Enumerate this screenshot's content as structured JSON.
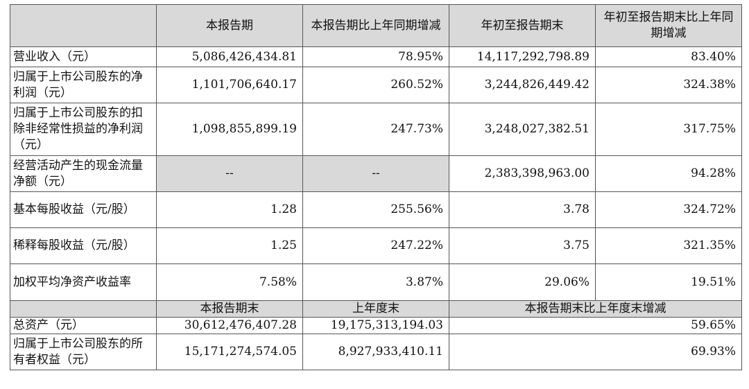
{
  "header": {
    "col1": "本报告期",
    "col2": "本报告期比上年同期增减",
    "col3": "年初至报告期末",
    "col4": "年初至报告期末比上年同期增减"
  },
  "rows": [
    {
      "label": "营业收入（元）",
      "v1": "5,086,426,434.81",
      "v2": "78.95%",
      "v3": "14,117,292,798.89",
      "v4": "83.40%"
    },
    {
      "label": "归属于上市公司股东的净利润（元）",
      "v1": "1,101,706,640.17",
      "v2": "260.52%",
      "v3": "3,244,826,449.42",
      "v4": "324.38%"
    },
    {
      "label": "归属于上市公司股东的扣除非经常性损益的净利润（元）",
      "v1": "1,098,855,899.19",
      "v2": "247.73%",
      "v3": "3,248,027,382.51",
      "v4": "317.75%"
    },
    {
      "label": "经营活动产生的现金流量净额（元）",
      "v1": "--",
      "v2": "--",
      "v3": "2,383,398,963.00",
      "v4": "94.28%"
    },
    {
      "label": "基本每股收益（元/股）",
      "v1": "1.28",
      "v2": "255.56%",
      "v3": "3.78",
      "v4": "324.72%"
    },
    {
      "label": "稀释每股收益（元/股）",
      "v1": "1.25",
      "v2": "247.22%",
      "v3": "3.75",
      "v4": "321.35%"
    },
    {
      "label": "加权平均净资产收益率",
      "v1": "7.58%",
      "v2": "3.87%",
      "v3": "29.06%",
      "v4": "19.51%"
    }
  ],
  "subheader": {
    "col1": "本报告期末",
    "col2": "上年度末",
    "col3": "本报告期末比上年度末增减"
  },
  "rows2": [
    {
      "label": "总资产（元）",
      "v1": "30,612,476,407.28",
      "v2": "19,175,313,194.03",
      "v3": "59.65%"
    },
    {
      "label": "归属于上市公司股东的所有者权益（元）",
      "v1": "15,171,274,574.05",
      "v2": "8,927,933,410.11",
      "v3": "69.93%"
    }
  ],
  "colors": {
    "header_bg": "#d9d9d9",
    "border": "#555555",
    "text": "#111111"
  }
}
